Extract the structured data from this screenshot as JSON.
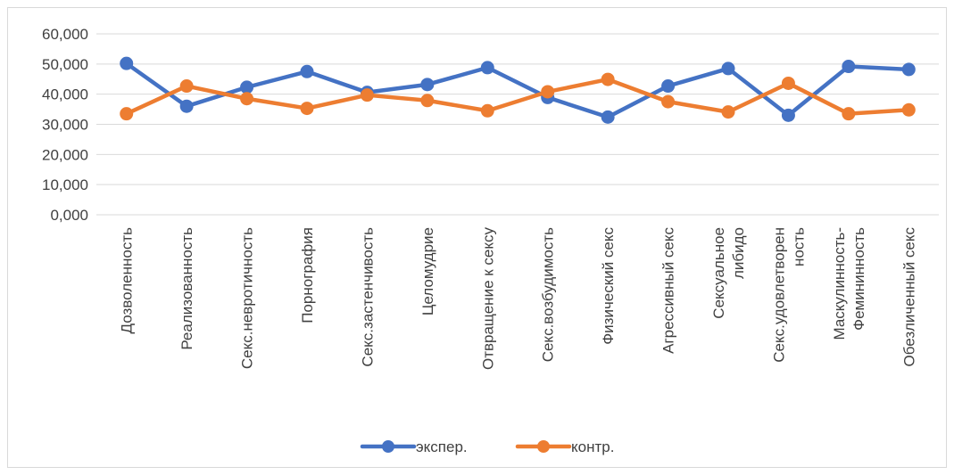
{
  "chart_data": {
    "type": "line",
    "title": "",
    "xlabel": "",
    "ylabel": "",
    "ylim": [
      0,
      60
    ],
    "yticks": [
      0,
      10,
      20,
      30,
      40,
      50,
      60
    ],
    "ytick_labels": [
      "0,000",
      "10,000",
      "20,000",
      "30,000",
      "40,000",
      "50,000",
      "60,000"
    ],
    "grid": true,
    "legend_position": "bottom",
    "categories": [
      [
        "Дозволенность"
      ],
      [
        "Реализованность"
      ],
      [
        "Секс.невротичность"
      ],
      [
        "Порнография"
      ],
      [
        "Секс.застенчивость"
      ],
      [
        "Целомудрие"
      ],
      [
        "Отвращение к сексу"
      ],
      [
        "Секс.возбудимость"
      ],
      [
        "Физический секс"
      ],
      [
        "Агрессивный секс"
      ],
      [
        "Сексуальное",
        "либидо"
      ],
      [
        "Секс.удовлетворен",
        "ность"
      ],
      [
        "Маскулинность-",
        "Фемининность"
      ],
      [
        "Обезличенный секс"
      ]
    ],
    "series": [
      {
        "name": "экспер.",
        "color": "#4472C4",
        "values": [
          50.2,
          36.0,
          42.3,
          47.5,
          40.6,
          43.2,
          48.8,
          38.9,
          32.4,
          42.7,
          48.5,
          33.0,
          49.2,
          48.2
        ]
      },
      {
        "name": "контр.",
        "color": "#ED7D31",
        "values": [
          33.5,
          42.7,
          38.5,
          35.3,
          39.7,
          37.9,
          34.5,
          40.8,
          44.9,
          37.5,
          34.1,
          43.6,
          33.5,
          34.8
        ]
      }
    ]
  }
}
